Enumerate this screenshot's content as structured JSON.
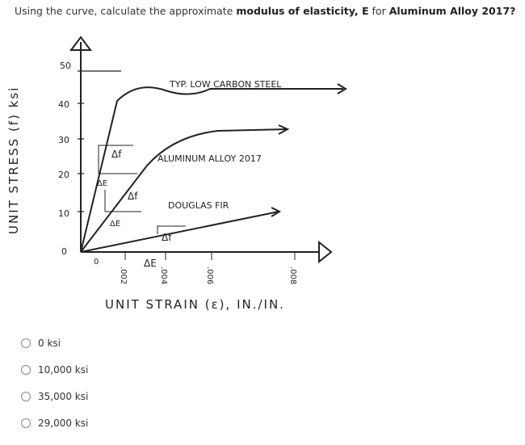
{
  "question": {
    "prefix": "Using the curve, calculate the approximate ",
    "bold1": "modulus of elasticity, E",
    "middle": " for ",
    "bold2": "Aluminum Alloy 2017?"
  },
  "figure": {
    "y_label": "UNIT STRESS (f) ksi",
    "x_label": "UNIT STRAIN (ε), IN./IN.",
    "y_ticks": [
      "0",
      "10",
      "20",
      "30",
      "40",
      "50"
    ],
    "x_ticks": [
      "0",
      ".002",
      ".004",
      ".006",
      ".008"
    ],
    "curves": [
      "TYP. LOW CARBON STEEL",
      "ALUMINUM ALLOY 2017",
      "DOUGLAS FIR"
    ],
    "delta_f": "Δf",
    "delta_e": "ΔE"
  },
  "options": [
    "0 ksi",
    "10,000 ksi",
    "35,000 ksi",
    "29,000 ksi"
  ]
}
